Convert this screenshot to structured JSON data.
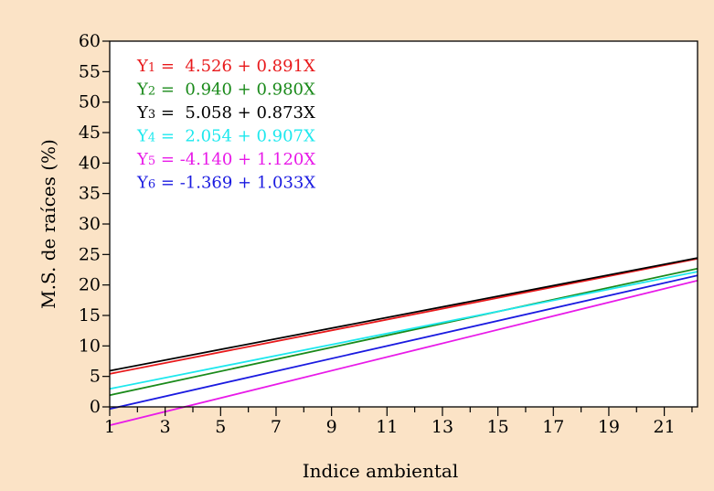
{
  "chart_data": {
    "type": "line",
    "title": "",
    "xlabel": "Indice ambiental",
    "ylabel": "M.S. de raíces (%)",
    "xlim": [
      1,
      22.2
    ],
    "ylim": [
      0,
      60
    ],
    "xticks": [
      1,
      3,
      5,
      7,
      9,
      11,
      13,
      15,
      17,
      19,
      21
    ],
    "yticks": [
      0,
      5,
      10,
      15,
      20,
      25,
      30,
      35,
      40,
      45,
      50,
      55,
      60
    ],
    "grid": false,
    "legend": "top-left",
    "series": [
      {
        "label": "Y1 =  4.526 + 0.891X",
        "sub": "1",
        "intercept": 4.526,
        "slope": 0.891,
        "color": "#e8191b"
      },
      {
        "label": "Y2 =  0.940 + 0.980X",
        "sub": "2",
        "intercept": 0.94,
        "slope": 0.98,
        "color": "#1a8a1a"
      },
      {
        "label": "Y3 =  5.058 + 0.873X",
        "sub": "3",
        "intercept": 5.058,
        "slope": 0.873,
        "color": "#000000"
      },
      {
        "label": "Y4 =  2.054 + 0.907X",
        "sub": "4",
        "intercept": 2.054,
        "slope": 0.907,
        "color": "#1ee8ee"
      },
      {
        "label": "Y5 = -4.140 + 1.120X",
        "sub": "5",
        "intercept": -4.14,
        "slope": 1.12,
        "color": "#e81ae8"
      },
      {
        "label": "Y6 = -1.369 + 1.033X",
        "sub": "6",
        "intercept": -1.369,
        "slope": 1.033,
        "color": "#1a1ae0"
      }
    ]
  }
}
